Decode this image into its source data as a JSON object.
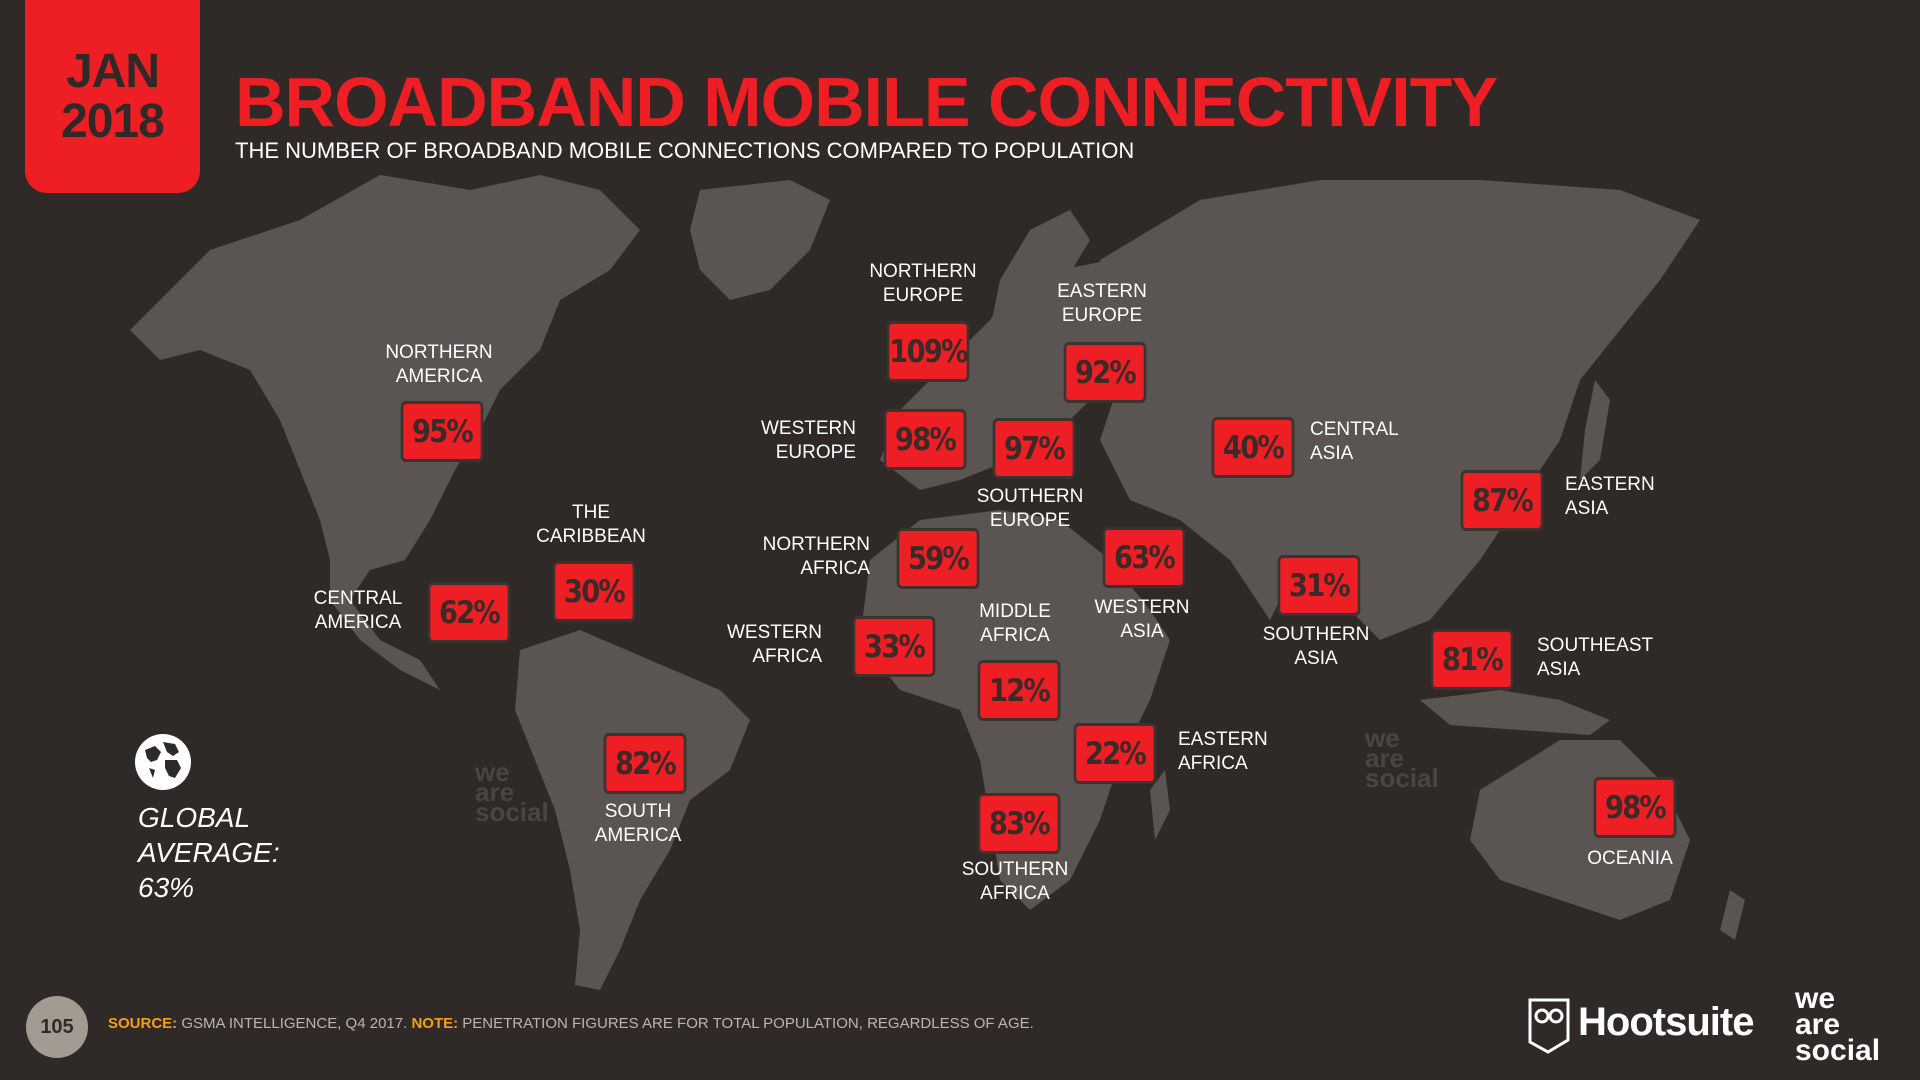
{
  "header": {
    "date_month": "JAN",
    "date_year": "2018",
    "title": "BROADBAND MOBILE CONNECTIVITY",
    "subtitle": "THE NUMBER OF BROADBAND MOBILE CONNECTIONS COMPARED TO POPULATION"
  },
  "regions": [
    {
      "name": "NORTHERN\nAMERICA",
      "value": "95%"
    },
    {
      "name": "CENTRAL\nAMERICA",
      "value": "62%"
    },
    {
      "name": "THE\nCARIBBEAN",
      "value": "30%"
    },
    {
      "name": "SOUTH\nAMERICA",
      "value": "82%"
    },
    {
      "name": "NORTHERN\nEUROPE",
      "value": "109%"
    },
    {
      "name": "WESTERN\nEUROPE",
      "value": "98%"
    },
    {
      "name": "SOUTHERN\nEUROPE",
      "value": "97%"
    },
    {
      "name": "EASTERN\nEUROPE",
      "value": "92%"
    },
    {
      "name": "NORTHERN\nAFRICA",
      "value": "59%"
    },
    {
      "name": "WESTERN\nAFRICA",
      "value": "33%"
    },
    {
      "name": "MIDDLE\nAFRICA",
      "value": "12%"
    },
    {
      "name": "EASTERN\nAFRICA",
      "value": "22%"
    },
    {
      "name": "SOUTHERN\nAFRICA",
      "value": "83%"
    },
    {
      "name": "WESTERN\nASIA",
      "value": "63%"
    },
    {
      "name": "CENTRAL\nASIA",
      "value": "40%"
    },
    {
      "name": "SOUTHERN\nASIA",
      "value": "31%"
    },
    {
      "name": "EASTERN\nASIA",
      "value": "87%"
    },
    {
      "name": "SOUTHEAST\nASIA",
      "value": "81%"
    },
    {
      "name": "OCEANIA",
      "value": "98%"
    }
  ],
  "global": {
    "line1": "GLOBAL",
    "line2": "AVERAGE:",
    "value": "63%"
  },
  "footer": {
    "page_number": "105",
    "source_key": "SOURCE:",
    "source_text": " GSMA INTELLIGENCE, Q4 2017. ",
    "note_key": "NOTE:",
    "note_text": " PENETRATION FIGURES ARE FOR TOTAL POPULATION, REGARDLESS OF AGE.",
    "brand_hootsuite": "Hootsuite",
    "brand_was_1": "we",
    "brand_was_2": "are",
    "brand_was_3": "social"
  },
  "watermark": {
    "line1": "we",
    "line2": "are",
    "line3": "social"
  },
  "colors": {
    "background": "#2f2a27",
    "land": "#5a5452",
    "accent": "#ee1f24",
    "note": "#f2a01c"
  }
}
